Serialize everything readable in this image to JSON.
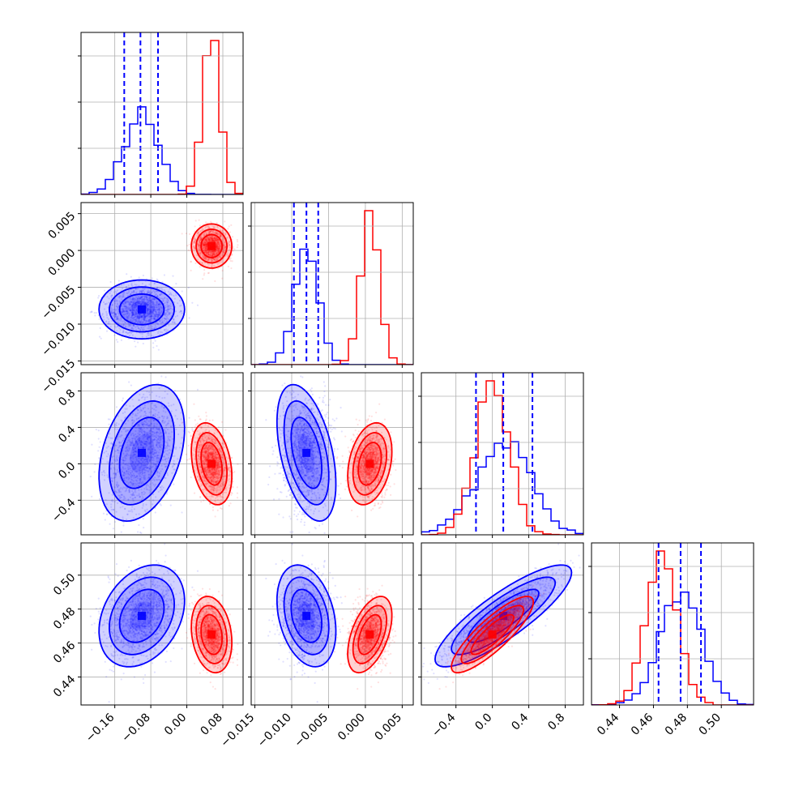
{
  "chart_data": {
    "type": "scatter",
    "plot_kind": "corner",
    "grid": true,
    "params": [
      {
        "lim": [
          -0.235,
          0.125
        ],
        "ticks": [
          -0.16,
          -0.08,
          0.0,
          0.08
        ],
        "tick_labels": [
          "−0.16",
          "−0.08",
          "0.00",
          "0.08"
        ]
      },
      {
        "lim": [
          -0.0155,
          0.0065
        ],
        "ticks": [
          -0.015,
          -0.01,
          -0.005,
          0.0,
          0.005
        ],
        "tick_labels": [
          "−0.015",
          "−0.010",
          "−0.005",
          "0.000",
          "0.005"
        ]
      },
      {
        "lim": [
          -0.78,
          1.0
        ],
        "ticks": [
          -0.4,
          0.0,
          0.4,
          0.8
        ],
        "tick_labels": [
          "−0.4",
          "0.0",
          "0.4",
          "0.8"
        ]
      },
      {
        "lim": [
          0.4235,
          0.519
        ],
        "ticks": [
          0.44,
          0.46,
          0.48,
          0.5
        ],
        "tick_labels": [
          "0.44",
          "0.46",
          "0.48",
          "0.50"
        ]
      }
    ],
    "series": [
      {
        "color": "#0000ff",
        "mean": [
          -0.1,
          -0.008,
          0.12,
          0.476
        ],
        "sd": [
          0.038,
          0.0016,
          0.3,
          0.012
        ],
        "quantiles": [
          [
            -0.139,
            -0.103,
            -0.064
          ],
          [
            -0.0097,
            -0.008,
            -0.0064
          ],
          [
            -0.18,
            0.12,
            0.44
          ],
          [
            0.463,
            0.476,
            0.488
          ]
        ]
      },
      {
        "color": "#ff0000",
        "mean": [
          0.055,
          0.0006,
          0.0,
          0.465
        ],
        "sd": [
          0.018,
          0.0012,
          0.18,
          0.009
        ]
      }
    ],
    "correlations": [
      {
        "pair": [
          1,
          0
        ],
        "series": [
          0.0,
          0.0
        ]
      },
      {
        "pair": [
          2,
          0
        ],
        "series": [
          0.35,
          -0.3
        ]
      },
      {
        "pair": [
          2,
          1
        ],
        "series": [
          -0.45,
          0.3
        ]
      },
      {
        "pair": [
          3,
          0
        ],
        "series": [
          0.3,
          -0.2
        ]
      },
      {
        "pair": [
          3,
          1
        ],
        "series": [
          -0.3,
          0.5
        ]
      },
      {
        "pair": [
          3,
          2
        ],
        "series": [
          0.85,
          0.85
        ]
      }
    ]
  }
}
